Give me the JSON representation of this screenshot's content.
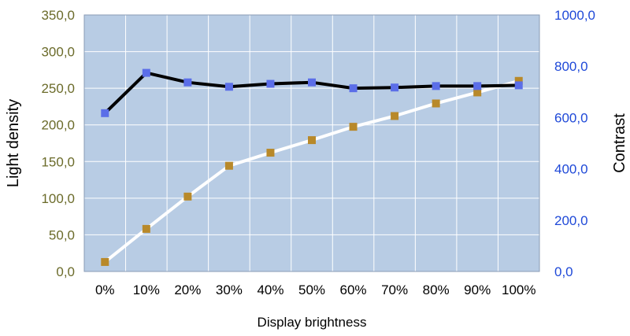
{
  "chart_data": {
    "type": "line",
    "xlabel": "Display brightness",
    "ylabel_left": "Light density",
    "ylabel_right": "Contrast",
    "categories": [
      "0%",
      "10%",
      "20%",
      "30%",
      "40%",
      "50%",
      "60%",
      "70%",
      "80%",
      "90%",
      "100%"
    ],
    "left_axis": {
      "min": 0,
      "max": 350,
      "step": 50,
      "tick_labels": [
        "0,0",
        "50,0",
        "100,0",
        "150,0",
        "200,0",
        "250,0",
        "300,0",
        "350,0"
      ]
    },
    "right_axis": {
      "min": 0,
      "max": 1000,
      "step": 200,
      "tick_labels": [
        "0,0",
        "200,0",
        "400,0",
        "600,0",
        "800,0",
        "1000,0"
      ]
    },
    "series": [
      {
        "axis": "left",
        "line_color": "#000000",
        "marker_color": "#5b6ee8",
        "values": [
          216,
          271,
          258,
          252,
          256,
          258,
          250,
          251,
          253,
          253,
          254
        ]
      },
      {
        "axis": "right",
        "line_color": "#ffffff",
        "marker_color": "#b8892a",
        "values": [
          37,
          166,
          292,
          412,
          463,
          512,
          564,
          606,
          655,
          698,
          743
        ]
      }
    ],
    "grid": true,
    "colors": {
      "plot_background": "#b8cce4",
      "grid": "#ffffff",
      "left_tick_color": "#6b6b2a",
      "right_tick_color": "#1f49d8",
      "axis_title_color": "#000000"
    }
  }
}
